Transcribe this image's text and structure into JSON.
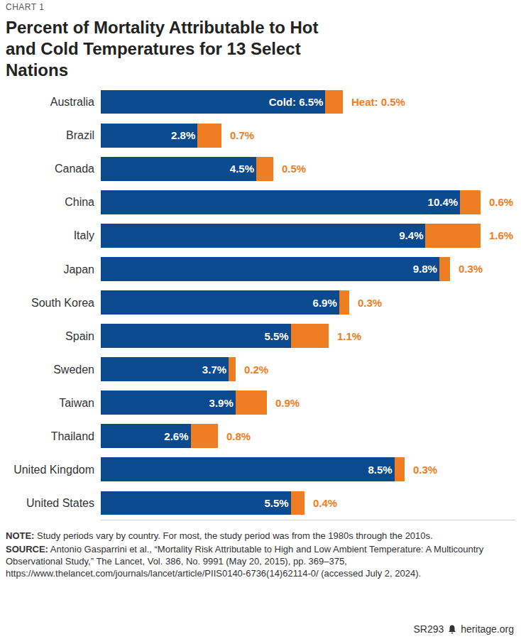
{
  "chart_data": {
    "type": "bar",
    "chart_label": "CHART 1",
    "title": "Percent of Mortality Attributable to Hot and Cold Temperatures for 13 Select Nations",
    "orientation": "horizontal",
    "stacked": true,
    "data_labels": true,
    "grid": false,
    "tick_labels": "y",
    "xlim": [
      0,
      12
    ],
    "categories": [
      "Australia",
      "Brazil",
      "Canada",
      "China",
      "Italy",
      "Japan",
      "South Korea",
      "Spain",
      "Sweden",
      "Taiwan",
      "Thailand",
      "United Kingdom",
      "United States"
    ],
    "series": [
      {
        "name": "Cold",
        "color": "#0b4a8f",
        "values": [
          6.5,
          2.8,
          4.5,
          10.4,
          9.4,
          9.8,
          6.9,
          5.5,
          3.7,
          3.9,
          2.6,
          8.5,
          5.5
        ],
        "value_labels": [
          "Cold: 6.5%",
          "2.8%",
          "4.5%",
          "10.4%",
          "9.4%",
          "9.8%",
          "6.9%",
          "5.5%",
          "3.7%",
          "3.9%",
          "2.6%",
          "8.5%",
          "5.5%"
        ]
      },
      {
        "name": "Heat",
        "color": "#ef7d22",
        "values": [
          0.5,
          0.7,
          0.5,
          0.6,
          1.6,
          0.3,
          0.3,
          1.1,
          0.2,
          0.9,
          0.8,
          0.3,
          0.4
        ],
        "value_labels": [
          "Heat: 0.5%",
          "0.7%",
          "0.5%",
          "0.6%",
          "1.6%",
          "0.3%",
          "0.3%",
          "1.1%",
          "0.2%",
          "0.9%",
          "0.8%",
          "0.3%",
          "0.4%"
        ]
      }
    ],
    "note": {
      "label": "NOTE:",
      "text": "Study periods vary by country. For most, the study period was from the 1980s through the 2010s."
    },
    "source": {
      "label": "SOURCE:",
      "text": "Antonio Gasparrini et al., “Mortality Risk Attributable to High and Low Ambient Temperature: A Multicountry Observational Study,” The Lancet, Vol. 386, No. 9991 (May 20, 2015), pp. 369–375, https://www.thelancet.com/journals/lancet/article/PIIS0140-6736(14)62114-0/ (accessed July 2, 2024)."
    },
    "footer": {
      "report": "SR293",
      "site": "heritage.org"
    }
  }
}
